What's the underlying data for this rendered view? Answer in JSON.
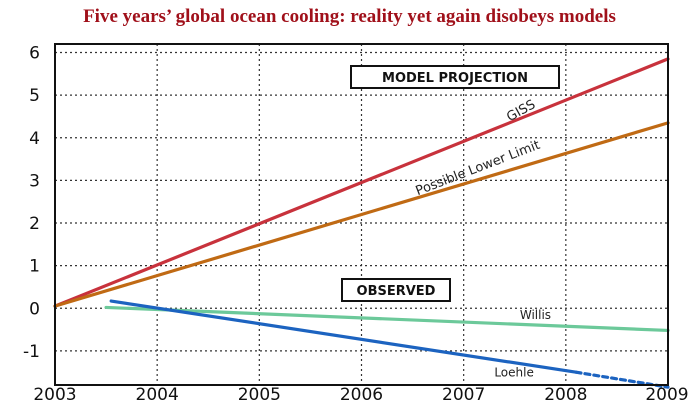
{
  "title": "Five years’ global ocean cooling: reality yet again disobeys models",
  "chart_data": {
    "type": "line",
    "title": "Five years’ global ocean cooling: reality yet again disobeys models",
    "xlabel": "",
    "ylabel": "",
    "xlim": [
      2003,
      2009
    ],
    "ylim": [
      -1.8,
      6.2
    ],
    "x_ticks": [
      "2003",
      "2004",
      "2005",
      "2006",
      "2007",
      "2008",
      "2009"
    ],
    "y_ticks": [
      "6",
      "5",
      "4",
      "3",
      "2",
      "1",
      "0",
      "-1"
    ],
    "grid": true,
    "annotations": {
      "model_projection": "MODEL PROJECTION",
      "observed": "OBSERVED"
    },
    "series": [
      {
        "name": "GISS",
        "color": "#c8323c",
        "style": "solid",
        "x": [
          2003,
          2009
        ],
        "y": [
          0.05,
          5.85
        ]
      },
      {
        "name": "Possible Lower Limit",
        "color": "#c06a14",
        "style": "solid",
        "x": [
          2003,
          2009
        ],
        "y": [
          0.05,
          4.35
        ]
      },
      {
        "name": "Willis",
        "color": "#6cc99a",
        "style": "solid",
        "x": [
          2003.5,
          2009
        ],
        "y": [
          0.02,
          -0.52
        ]
      },
      {
        "name": "Loehle",
        "color": "#1c63c0",
        "style": "solid",
        "x": [
          2003.55,
          2008.1
        ],
        "y": [
          0.17,
          -1.5
        ]
      },
      {
        "name": "",
        "color": "#1c63c0",
        "style": "dashed",
        "x": [
          2008.1,
          2009
        ],
        "y": [
          -1.5,
          -1.85
        ]
      }
    ]
  }
}
